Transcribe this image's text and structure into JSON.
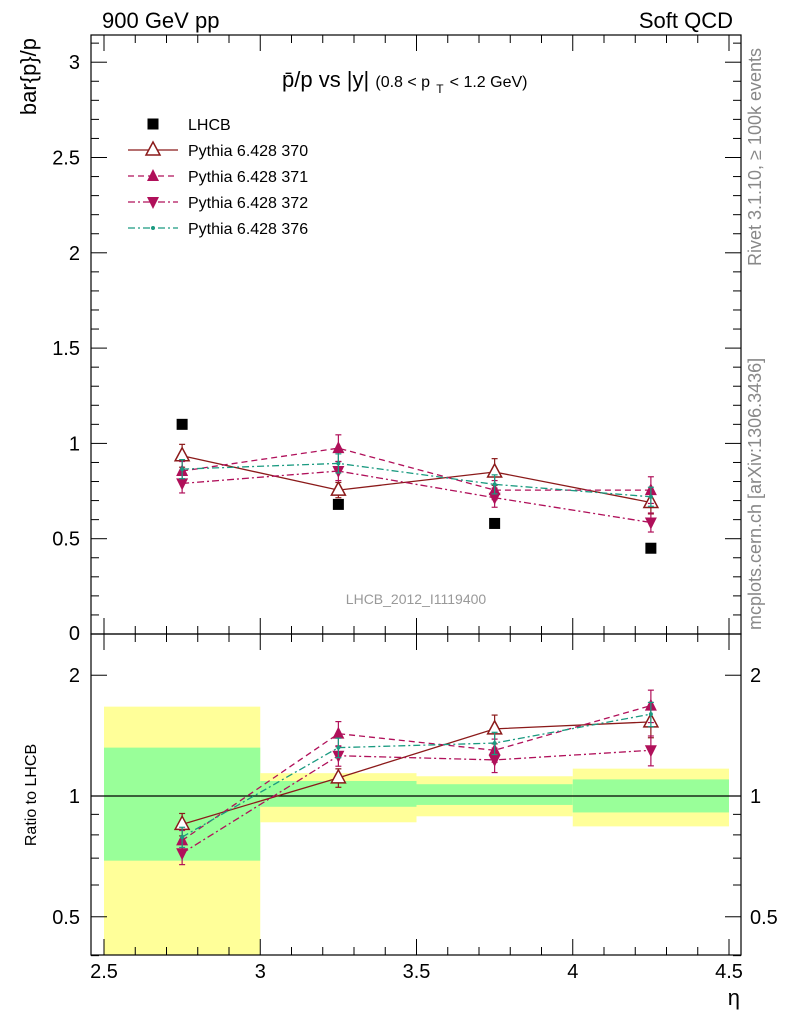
{
  "header": {
    "left": "900 GeV pp",
    "right": "Soft QCD"
  },
  "side_text": {
    "rivet": "Rivet 3.1.10, ≥ 100k events",
    "mcplots": "mcplots.cern.ch [arXiv:1306.3436]"
  },
  "main_plot": {
    "title_main": "p̄/p vs |y|",
    "title_sub": "(0.8 < p",
    "title_sub_idx": "T",
    "title_sub_end": " < 1.2 GeV)",
    "ylabel": "bar{p}/p",
    "watermark": "LHCB_2012_I1119400",
    "yticks": [
      "0.5",
      "1",
      "1.5",
      "2",
      "2.5",
      "3"
    ],
    "ytick_zero": "0"
  },
  "ratio_plot": {
    "ylabel": "Ratio to LHCB",
    "yticks_left": [
      "0.5",
      "1",
      "2"
    ],
    "yticks_right": [
      "0.5",
      "1",
      "2"
    ]
  },
  "xaxis": {
    "label": "η",
    "ticks": [
      "2.5",
      "3",
      "3.5",
      "4",
      "4.5"
    ]
  },
  "legend": {
    "items": [
      {
        "label": "LHCB",
        "color": "#000000",
        "marker": "square-icon"
      },
      {
        "label": "Pythia 6.428 370",
        "color": "#8b1a1a",
        "marker": "open-triangle-icon"
      },
      {
        "label": "Pythia 6.428 371",
        "color": "#b0105a",
        "marker": "filled-triangle-up-icon"
      },
      {
        "label": "Pythia 6.428 372",
        "color": "#b0105a",
        "marker": "filled-triangle-down-icon"
      },
      {
        "label": "Pythia 6.428 376",
        "color": "#1a9a80",
        "marker": "small-dot-icon"
      }
    ]
  },
  "chart_data": {
    "type": "scatter",
    "xlabel": "η",
    "ylabel": "bar{p}/p",
    "xlim": [
      2.5,
      4.5
    ],
    "ylim": [
      0,
      3.1
    ],
    "ratio_ylabel": "Ratio to LHCB",
    "ratio_ylim": [
      0.4,
      2.3
    ],
    "ratio_log_scale": true,
    "x": [
      2.75,
      3.25,
      3.75,
      4.25
    ],
    "series": [
      {
        "name": "LHCB",
        "color": "#000000",
        "line": "none",
        "marker": "square",
        "values": [
          1.1,
          0.68,
          0.58,
          0.45
        ],
        "errors": [
          0,
          0,
          0,
          0
        ]
      },
      {
        "name": "Pythia 6.428 370",
        "color": "#8b1a1a",
        "line": "solid",
        "marker": "open-triangle-up",
        "values": [
          0.935,
          0.755,
          0.85,
          0.69
        ],
        "errors": [
          0.06,
          0.04,
          0.07,
          0.06
        ]
      },
      {
        "name": "Pythia 6.428 371",
        "color": "#b0105a",
        "line": "dashed",
        "marker": "triangle-up",
        "values": [
          0.855,
          0.975,
          0.755,
          0.755
        ],
        "errors": [
          0.05,
          0.07,
          0.05,
          0.07
        ]
      },
      {
        "name": "Pythia 6.428 372",
        "color": "#b0105a",
        "line": "dashdot",
        "marker": "triangle-down",
        "values": [
          0.79,
          0.855,
          0.715,
          0.585
        ],
        "errors": [
          0.05,
          0.05,
          0.05,
          0.05
        ]
      },
      {
        "name": "Pythia 6.428 376",
        "color": "#1a9a80",
        "line": "dashdot",
        "marker": "dot",
        "values": [
          0.865,
          0.895,
          0.785,
          0.72
        ],
        "errors": [
          0.05,
          0.05,
          0.05,
          0.05
        ]
      }
    ],
    "ratio_series": [
      {
        "name": "Pythia 6.428 370",
        "values": [
          0.85,
          1.11,
          1.47,
          1.53
        ]
      },
      {
        "name": "Pythia 6.428 371",
        "values": [
          0.775,
          1.43,
          1.3,
          1.68
        ]
      },
      {
        "name": "Pythia 6.428 372",
        "values": [
          0.72,
          1.26,
          1.23,
          1.3
        ]
      },
      {
        "name": "Pythia 6.428 376",
        "values": [
          0.79,
          1.32,
          1.355,
          1.6
        ]
      }
    ],
    "ratio_bands": [
      {
        "x_range": [
          2.5,
          3.0
        ],
        "green": [
          0.69,
          1.32
        ],
        "yellow": [
          0.4,
          1.67
        ]
      },
      {
        "x_range": [
          3.0,
          3.5
        ],
        "green": [
          0.94,
          1.09
        ],
        "yellow": [
          0.86,
          1.14
        ]
      },
      {
        "x_range": [
          3.5,
          4.0
        ],
        "green": [
          0.95,
          1.07
        ],
        "yellow": [
          0.89,
          1.12
        ]
      },
      {
        "x_range": [
          4.0,
          4.5
        ],
        "green": [
          0.91,
          1.1
        ],
        "yellow": [
          0.84,
          1.17
        ]
      }
    ],
    "grid": false,
    "legend_position": "top-left"
  }
}
